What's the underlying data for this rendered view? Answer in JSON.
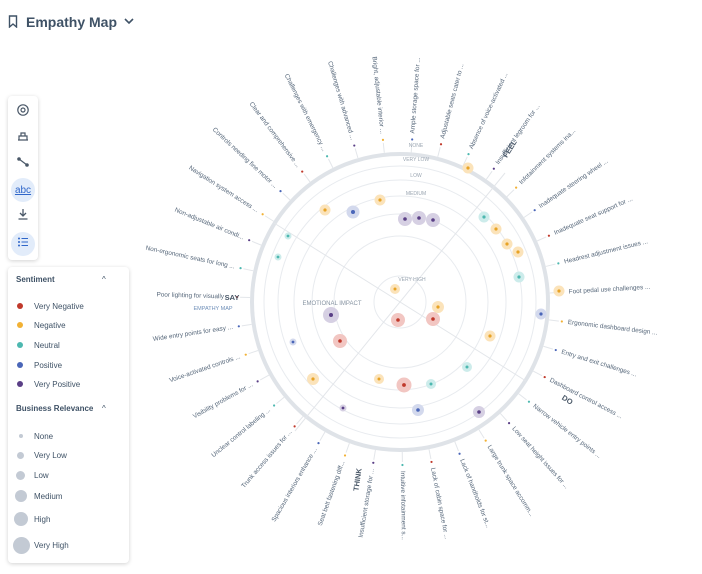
{
  "header": {
    "title": "Empathy Map",
    "bookmark_icon": "bookmark-icon",
    "chevron_icon": "chevron-down-icon"
  },
  "toolbar": {
    "items": [
      {
        "icon": "settings-icon",
        "active": false
      },
      {
        "icon": "layout-icon",
        "active": false
      },
      {
        "icon": "connect-icon",
        "active": false
      },
      {
        "icon": "labels-icon",
        "label": "abc",
        "active": true
      },
      {
        "icon": "download-icon",
        "active": false
      },
      {
        "icon": "list-icon",
        "active": true
      }
    ]
  },
  "legend": {
    "sentiment_title": "Sentiment",
    "sentiment": [
      {
        "label": "Very Negative",
        "color": "#c0392b"
      },
      {
        "label": "Negative",
        "color": "#f2b134"
      },
      {
        "label": "Neutral",
        "color": "#4db8b0"
      },
      {
        "label": "Positive",
        "color": "#4a66b8"
      },
      {
        "label": "Very Positive",
        "color": "#5a3f86"
      }
    ],
    "relevance_title": "Business Relevance",
    "relevance": [
      "None",
      "Very Low",
      "Low",
      "Medium",
      "High",
      "Very High"
    ]
  },
  "map": {
    "quadrants": [
      "FEEL",
      "DO",
      "THINK",
      "SAY"
    ],
    "center_label": "EMPATHY MAP",
    "axis_label": "EMOTIONAL IMPACT",
    "rings": [
      "NONE",
      "VERY LOW",
      "LOW",
      "MEDIUM",
      "VERY HIGH"
    ],
    "labels": [
      "Bright, adjustable interior ...",
      "Ample storage space for ...",
      "Adjustable seats cater to ...",
      "Absence of voice-activated ...",
      "Insufficient legroom for ...",
      "Infotainment systems ina...",
      "Inadequate steering wheel ...",
      "Inadequate seat support for ...",
      "Headrest adjustment issues ...",
      "Foot pedal use challenges ...",
      "Ergonomic dashboard design ...",
      "Entry and exit challenges ...",
      "Dashboard control access ...",
      "Narrow vehicle entry points ...",
      "Low seat height issues for ...",
      "Large trunk space accomm...",
      "Lack of handholds for st...",
      "Lack of cabin space for ...",
      "Intuitive infotainment s...",
      "Insufficient storage for ...",
      "Seat belt fastening diff...",
      "Spacious interiors enhance ...",
      "Trunk access issues for ...",
      "Unclear control labeling ...",
      "Visibility problems for ...",
      "Voice-activated controls ...",
      "Wide entry points for easy ...",
      "Poor lighting for visually ...",
      "Non-ergonomic seats for long ...",
      "Non-adjustable air condi...",
      "Navigation system access ...",
      "Controls needing fine motor ...",
      "Clear and comprehensive ...",
      "Challenges with emergency ...",
      "Challenges with advanced ..."
    ]
  }
}
